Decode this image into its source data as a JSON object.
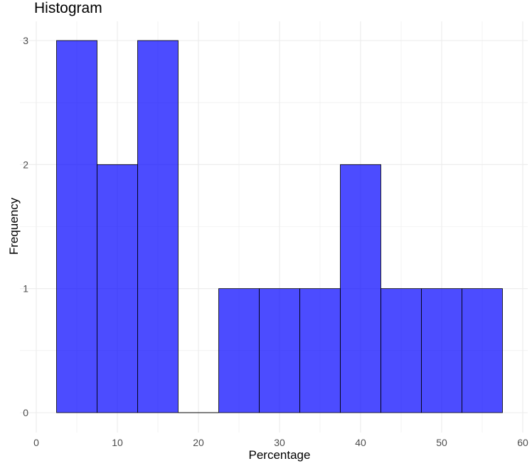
{
  "chart_data": {
    "type": "bar",
    "title": "Histogram",
    "xlabel": "Percentage",
    "ylabel": "Frequency",
    "xlim": [
      0,
      60
    ],
    "ylim": [
      0,
      3
    ],
    "x_ticks": [
      "0",
      "10",
      "20",
      "30",
      "40",
      "50",
      "60"
    ],
    "y_ticks": [
      "0",
      "1",
      "2",
      "3"
    ],
    "bin_width": 5,
    "bins": [
      {
        "start": 2.5,
        "end": 7.5,
        "count": 3
      },
      {
        "start": 7.5,
        "end": 12.5,
        "count": 2
      },
      {
        "start": 12.5,
        "end": 17.5,
        "count": 3
      },
      {
        "start": 17.5,
        "end": 22.5,
        "count": 0
      },
      {
        "start": 22.5,
        "end": 27.5,
        "count": 1
      },
      {
        "start": 27.5,
        "end": 32.5,
        "count": 1
      },
      {
        "start": 32.5,
        "end": 37.5,
        "count": 1
      },
      {
        "start": 37.5,
        "end": 42.5,
        "count": 2
      },
      {
        "start": 42.5,
        "end": 47.5,
        "count": 1
      },
      {
        "start": 47.5,
        "end": 52.5,
        "count": 1
      },
      {
        "start": 52.5,
        "end": 57.5,
        "count": 1
      }
    ],
    "grid": true,
    "bar_fill": "#0000ff",
    "bar_fill_opacity": 0.7,
    "bar_stroke": "#000000",
    "grid_color": "#ebebeb",
    "tick_label_color": "#4d4d4d"
  }
}
